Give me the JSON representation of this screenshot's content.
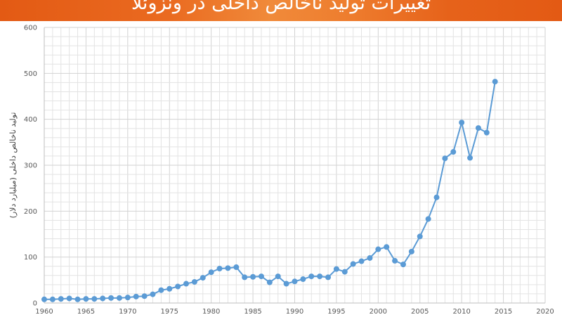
{
  "colors": {
    "header": "#e8641c",
    "series": "#5b9bd5",
    "grid": "#e3e3e3",
    "grid_major": "#d2d2d2",
    "axis": "#bfbfbf"
  },
  "chart_data": {
    "type": "line",
    "title": "تغییرات تولید ناخالص داخلی در ونزوئلا",
    "xlabel": "",
    "ylabel": "تولید ناخالص داخلی (میلیارد دلار)",
    "xlim": [
      1960,
      2020
    ],
    "ylim": [
      0,
      600
    ],
    "xticks": [
      1960,
      1965,
      1970,
      1975,
      1980,
      1985,
      1990,
      1995,
      2000,
      2005,
      2010,
      2015,
      2020
    ],
    "yticks": [
      0,
      100,
      200,
      300,
      400,
      500,
      600
    ],
    "grid": true,
    "legend": "none",
    "x": [
      1960,
      1961,
      1962,
      1963,
      1964,
      1965,
      1966,
      1967,
      1968,
      1969,
      1970,
      1971,
      1972,
      1973,
      1974,
      1975,
      1976,
      1977,
      1978,
      1979,
      1980,
      1981,
      1982,
      1983,
      1984,
      1985,
      1986,
      1987,
      1988,
      1989,
      1990,
      1991,
      1992,
      1993,
      1994,
      1995,
      1996,
      1997,
      1998,
      1999,
      2000,
      2001,
      2002,
      2003,
      2004,
      2005,
      2006,
      2007,
      2008,
      2009,
      2010,
      2011,
      2012,
      2013,
      2014
    ],
    "series": [
      {
        "values": [
          8,
          8,
          9,
          10,
          8,
          9,
          9,
          10,
          11,
          11,
          12,
          14,
          15,
          19,
          28,
          31,
          36,
          42,
          46,
          55,
          67,
          75,
          76,
          78,
          56,
          57,
          58,
          45,
          58,
          42,
          47,
          52,
          58,
          58,
          56,
          74,
          68,
          85,
          91,
          98,
          117,
          122,
          92,
          84,
          112,
          145,
          183,
          230,
          315,
          329,
          393,
          316,
          381,
          371,
          482
        ]
      }
    ]
  }
}
